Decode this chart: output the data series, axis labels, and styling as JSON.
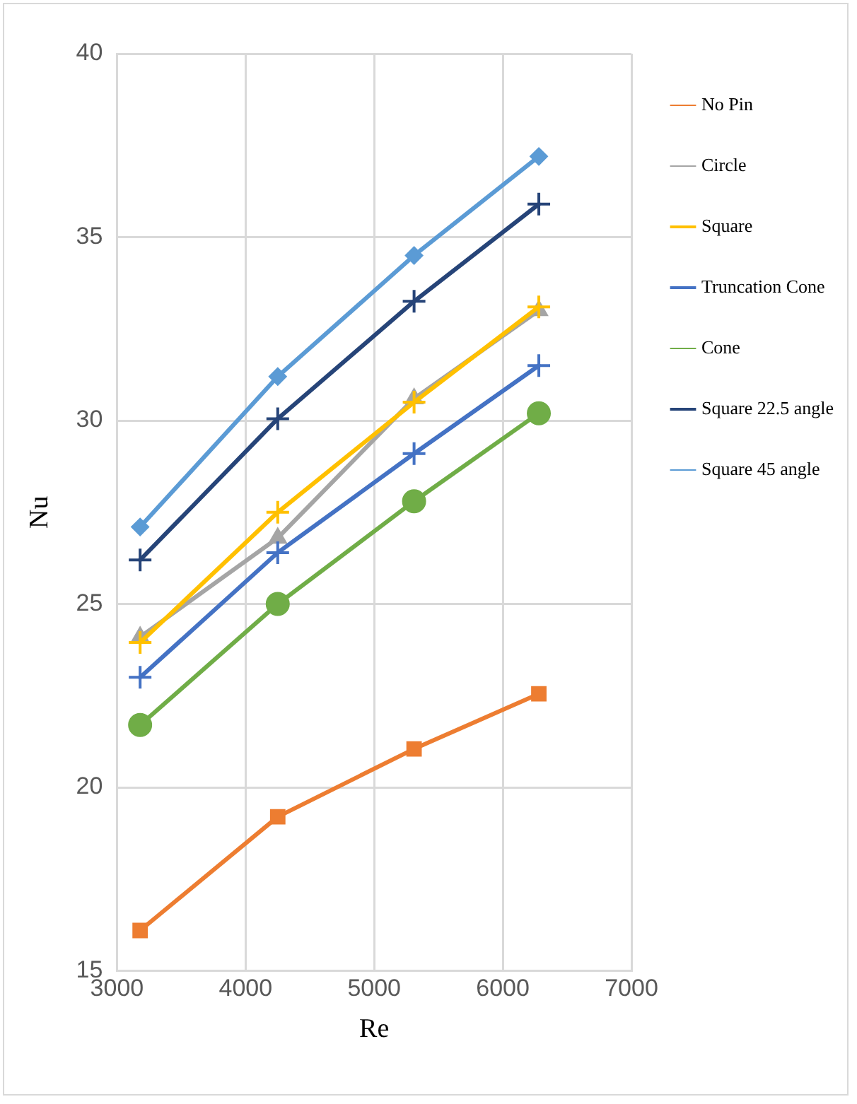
{
  "chart_data": {
    "type": "line",
    "xlabel": "Re",
    "ylabel": "Nu",
    "x": [
      3180,
      4250,
      5310,
      6280
    ],
    "xlim": [
      3000,
      7000
    ],
    "xticks": [
      3000,
      4000,
      5000,
      6000,
      7000
    ],
    "ylim": [
      15,
      40
    ],
    "yticks": [
      15,
      20,
      25,
      30,
      35,
      40
    ],
    "grid": true,
    "legend": "right",
    "series": [
      {
        "name": "No Pin",
        "color": "#ed7d31",
        "marker": "square",
        "values": [
          16.1,
          19.2,
          21.05,
          22.55
        ]
      },
      {
        "name": "Circle",
        "color": "#a5a5a5",
        "marker": "triangle",
        "values": [
          24.1,
          26.8,
          30.6,
          33.0
        ]
      },
      {
        "name": "Square",
        "color": "#ffc000",
        "marker": "cross",
        "values": [
          23.95,
          27.5,
          30.5,
          33.1
        ]
      },
      {
        "name": "Truncation Cone",
        "color": "#4472c4",
        "marker": "cross",
        "values": [
          23.0,
          26.4,
          29.1,
          31.5
        ]
      },
      {
        "name": "Cone",
        "color": "#70ad47",
        "marker": "circle",
        "values": [
          21.7,
          25.0,
          27.8,
          30.2
        ]
      },
      {
        "name": "Square 22.5 angle",
        "color": "#264478",
        "marker": "cross",
        "values": [
          26.2,
          30.05,
          33.25,
          35.9
        ]
      },
      {
        "name": "Square 45 angle",
        "color": "#5b9bd5",
        "marker": "diamond",
        "values": [
          27.1,
          31.2,
          34.5,
          37.2
        ]
      }
    ]
  }
}
